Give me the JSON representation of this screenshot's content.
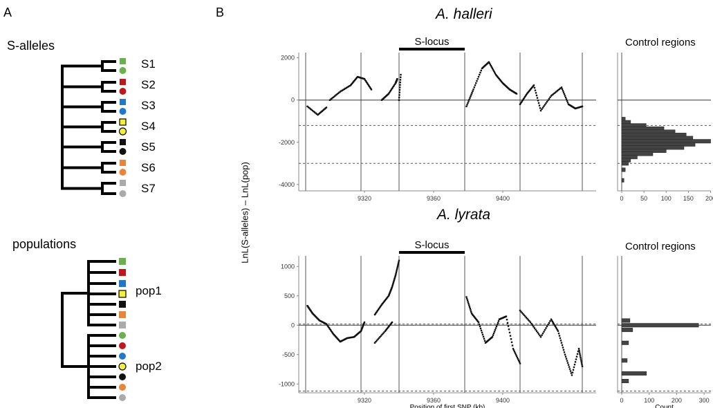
{
  "panel_a": {
    "letter": "A",
    "s_alleles_title": "S-alleles",
    "populations_title": "populations",
    "allele_labels": [
      "S1",
      "S2",
      "S3",
      "S4",
      "S5",
      "S6",
      "S7"
    ],
    "pop_labels": [
      "pop1",
      "pop2"
    ],
    "allele_colors": [
      "#6ab04c",
      "#c0171b",
      "#1f78c8",
      "#f4ef3a",
      "#111111",
      "#e8853a",
      "#aaaaaa"
    ]
  },
  "panel_b": {
    "letter": "B",
    "y_axis_label": "LnL(S-alleles) – LnL(pop)",
    "x_axis_label": "Position of first SNP (kb)",
    "count_label": "Count",
    "slocus_label": "S-locus",
    "control_title": "Control regions"
  },
  "chart_data": [
    {
      "type": "scatter",
      "title": "A. halleri",
      "xlabel": "",
      "ylabel": "LnL(S-alleles) – LnL(pop)",
      "xlim": [
        9282,
        9454
      ],
      "ylim": [
        -4300,
        2250
      ],
      "x_ticks": [
        9320,
        9360,
        9400
      ],
      "y_ticks": [
        2000,
        0,
        -2000,
        -4000
      ],
      "vlines_kb": [
        9286,
        9318,
        9340,
        9378,
        9410,
        9446
      ],
      "slocus_kb": [
        9340,
        9378
      ],
      "dashed_lines": [
        -1200,
        -3000
      ],
      "segments": [
        {
          "x": [
            9287,
            9293,
            9298
          ],
          "y": [
            -300,
            -700,
            -350
          ]
        },
        {
          "x": [
            9300,
            9306,
            9312,
            9316,
            9320,
            9324
          ],
          "y": [
            0,
            400,
            700,
            1100,
            1000,
            500
          ]
        },
        {
          "x": [
            9330,
            9334,
            9338,
            9339
          ],
          "y": [
            0,
            300,
            800,
            1000
          ]
        },
        {
          "x": [
            9340,
            9341
          ],
          "y": [
            0,
            1200
          ]
        },
        {
          "x": [
            9379,
            9383,
            9388,
            9392,
            9396,
            9400,
            9404,
            9408
          ],
          "y": [
            -300,
            500,
            1500,
            1800,
            1200,
            800,
            500,
            300
          ]
        },
        {
          "x": [
            9410,
            9414,
            9418,
            9422,
            9428,
            9434,
            9438,
            9442,
            9446
          ],
          "y": [
            -200,
            300,
            700,
            -500,
            200,
            600,
            -200,
            -400,
            -300
          ]
        }
      ]
    },
    {
      "type": "bar",
      "title": "Control regions",
      "xlabel": "",
      "x_ticks": [
        0,
        50,
        100,
        150,
        200
      ],
      "xlim": [
        0,
        210
      ],
      "bin_centers": [
        -900,
        -1050,
        -1200,
        -1350,
        -1500,
        -1650,
        -1800,
        -1950,
        -2100,
        -2250,
        -2400,
        -2550,
        -2700,
        -2850,
        -3000,
        -3300,
        -3800
      ],
      "counts": [
        8,
        20,
        55,
        95,
        120,
        145,
        160,
        200,
        165,
        140,
        100,
        70,
        35,
        20,
        15,
        8,
        5
      ]
    },
    {
      "type": "scatter",
      "title": "A. lyrata",
      "xlabel": "Position of first SNP (kb)",
      "ylabel": "LnL(S-alleles) – LnL(pop)",
      "xlim": [
        9282,
        9454
      ],
      "ylim": [
        -1150,
        1180
      ],
      "x_ticks": [
        9320,
        9360,
        9400
      ],
      "y_ticks": [
        1000,
        500,
        0,
        -500,
        -1000
      ],
      "vlines_kb": [
        9286,
        9318,
        9340,
        9378,
        9410,
        9446
      ],
      "slocus_kb": [
        9340,
        9378
      ],
      "dashed_lines": [
        20,
        -1120
      ],
      "segments": [
        {
          "x": [
            9287,
            9290,
            9294,
            9298,
            9302,
            9306,
            9310,
            9314,
            9318,
            9320
          ],
          "y": [
            330,
            200,
            80,
            20,
            -150,
            -280,
            -220,
            -200,
            -100,
            50
          ]
        },
        {
          "x": [
            9326,
            9330,
            9334,
            9336,
            9338,
            9340
          ],
          "y": [
            180,
            350,
            500,
            650,
            850,
            1100
          ]
        },
        {
          "x": [
            9326,
            9332,
            9336
          ],
          "y": [
            -300,
            -100,
            50
          ]
        },
        {
          "x": [
            9379,
            9382,
            9386,
            9390,
            9394,
            9398,
            9402,
            9406,
            9410
          ],
          "y": [
            480,
            200,
            50,
            -300,
            -200,
            100,
            150,
            -400,
            -650
          ]
        },
        {
          "x": [
            9410,
            9416,
            9422,
            9428,
            9432,
            9436,
            9440,
            9444,
            9446
          ],
          "y": [
            250,
            50,
            -200,
            100,
            -100,
            -500,
            -850,
            -400,
            -700
          ]
        }
      ]
    },
    {
      "type": "bar",
      "title": "Control regions",
      "xlabel": "Count",
      "x_ticks": [
        0,
        100,
        200,
        300
      ],
      "xlim": [
        0,
        340
      ],
      "bin_centers": [
        80,
        0,
        -80,
        -300,
        -600,
        -820,
        -950
      ],
      "counts": [
        30,
        280,
        40,
        25,
        20,
        90,
        25
      ]
    }
  ]
}
